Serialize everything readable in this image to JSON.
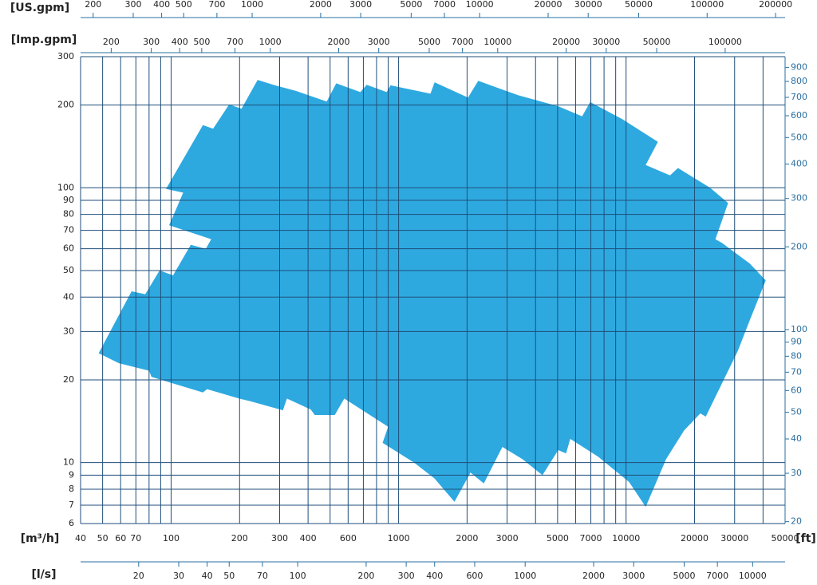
{
  "chart_data": {
    "type": "area",
    "color": "#2ea9e0",
    "grid_color": "#1f4e79",
    "log_x": true,
    "log_y": true,
    "x_label": "[m³/h]",
    "y2_label": "[ft]",
    "xlim": [
      40,
      50000
    ],
    "ylim": [
      6,
      300
    ],
    "y2lim": [
      19.69,
      984.3
    ],
    "xticks": [
      40,
      50,
      60,
      70,
      100,
      200,
      300,
      400,
      600,
      1000,
      2000,
      3000,
      5000,
      7000,
      10000,
      20000,
      30000,
      50000
    ],
    "xminor": [
      80,
      90,
      500,
      700,
      800,
      900,
      4000,
      6000,
      8000,
      9000,
      40000
    ],
    "yticks": [
      6,
      7,
      8,
      9,
      10,
      20,
      30,
      40,
      50,
      60,
      70,
      80,
      90,
      100,
      200,
      300
    ],
    "y2ticks": [
      20,
      30,
      40,
      50,
      60,
      70,
      80,
      90,
      100,
      200,
      300,
      400,
      500,
      600,
      700,
      800,
      900
    ],
    "x": [
      48,
      67,
      77,
      89,
      102,
      122,
      142,
      150,
      98,
      113,
      95,
      138,
      153,
      180,
      204,
      240,
      286,
      355,
      483,
      532,
      679,
      724,
      886,
      922,
      1380,
      1440,
      2020,
      2240,
      3360,
      5030,
      6410,
      6950,
      9600,
      13800,
      12200,
      15600,
      16900,
      23400,
      28100,
      24700,
      26400,
      35000,
      41100,
      35000,
      31000,
      22400,
      21200,
      18000,
      15000,
      12200,
      10300,
      7540,
      5680,
      5450,
      5030,
      4290,
      3500,
      2860,
      2370,
      2070,
      1760,
      1440,
      1170,
      850,
      900,
      577,
      524,
      428,
      411,
      323,
      310,
      224,
      199,
      144,
      138,
      82,
      80,
      59
    ],
    "values": [
      25,
      42,
      41,
      50,
      48,
      62,
      60,
      65,
      73,
      96,
      99,
      169,
      164,
      201,
      194,
      247,
      236,
      225,
      206,
      240,
      223,
      237,
      223,
      236,
      220,
      242,
      213,
      245,
      217,
      198,
      182,
      205,
      178,
      147,
      121,
      111,
      118,
      100,
      88,
      65,
      63,
      53,
      46,
      33,
      25.5,
      14.7,
      15.1,
      13.1,
      10.3,
      6.9,
      8.5,
      10.5,
      12.2,
      10.8,
      11.1,
      9,
      10.3,
      11.4,
      8.4,
      9.2,
      7.2,
      8.75,
      10,
      11.8,
      13.5,
      17.1,
      14.9,
      14.9,
      15.6,
      17.1,
      15.5,
      16.7,
      17.1,
      18.5,
      18,
      20.5,
      21.6,
      23
    ],
    "secondary_axes": [
      {
        "label": "[US.gpm]",
        "position": "top",
        "xlim": [
          176.1,
          220146
        ],
        "ticks": [
          200,
          300,
          400,
          500,
          700,
          1000,
          2000,
          3000,
          5000,
          7000,
          10000,
          20000,
          30000,
          50000,
          100000,
          200000
        ]
      },
      {
        "label": "[Imp.gpm]",
        "position": "top2",
        "xlim": [
          146.7,
          183400
        ],
        "ticks": [
          200,
          300,
          400,
          500,
          700,
          1000,
          2000,
          3000,
          5000,
          7000,
          10000,
          20000,
          30000,
          50000,
          100000
        ]
      },
      {
        "label": "[l/s]",
        "position": "bottom",
        "xlim": [
          11.11,
          13889
        ],
        "ticks": [
          20,
          30,
          40,
          50,
          70,
          100,
          200,
          300,
          400,
          600,
          1000,
          2000,
          3000,
          5000,
          7000,
          10000
        ]
      }
    ]
  }
}
